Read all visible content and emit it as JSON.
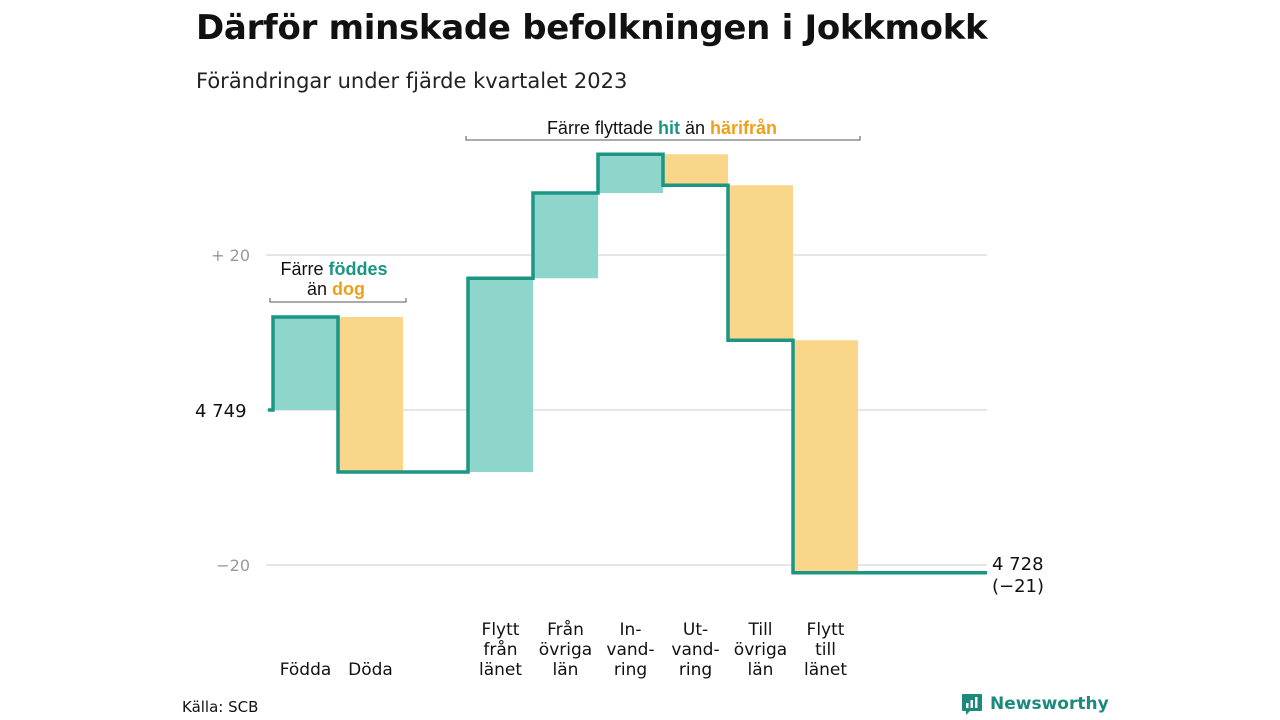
{
  "title": "Därför minskade befolkningen i Jokkmokk",
  "subtitle": "Förändringar under fjärde kvartalet 2023",
  "source": "Källa: SCB",
  "brand": "Newsworthy",
  "colors": {
    "teal": "#1b9584",
    "teal_fill": "#8ed5cb",
    "orange": "#f0a018",
    "orange_fill": "#fad68a",
    "grid": "#dddddd",
    "axis_text": "#999999"
  },
  "annotations": {
    "births": {
      "line1_pre": "Färre ",
      "line1_hl": "föddes",
      "line2_pre": "än ",
      "line2_hl": "dog"
    },
    "migration": {
      "pre": "Färre flyttade ",
      "hl1": "hit",
      "mid": " än ",
      "hl2": "härifrån"
    }
  },
  "chart_data": {
    "type": "waterfall",
    "start_label": "4 749",
    "end_label": "4 728",
    "end_change": "(−21)",
    "start": 0,
    "end": -21,
    "steps": [
      {
        "label": [
          "Födda"
        ],
        "value": 12,
        "kind": "in"
      },
      {
        "label": [
          "Döda"
        ],
        "value": -20,
        "kind": "out"
      },
      {
        "label": [
          "Flytt",
          "från",
          "länet"
        ],
        "value": 25,
        "kind": "in"
      },
      {
        "label": [
          "Från",
          "övriga",
          "län"
        ],
        "value": 11,
        "kind": "in"
      },
      {
        "label": [
          "In-",
          "vand-",
          "ring"
        ],
        "value": 5,
        "kind": "in"
      },
      {
        "label": [
          "Ut-",
          "vand-",
          "ring"
        ],
        "value": -4,
        "kind": "out"
      },
      {
        "label": [
          "Till",
          "övriga",
          "län"
        ],
        "value": -20,
        "kind": "out"
      },
      {
        "label": [
          "Flytt",
          "till",
          "länet"
        ],
        "value": -30,
        "kind": "out"
      }
    ],
    "yticks": [
      {
        "value": 20,
        "label": "+  20"
      },
      {
        "value": 0,
        "label": ""
      },
      {
        "value": -20,
        "label": "−20"
      }
    ],
    "grid": true,
    "ylim": [
      -22,
      33
    ]
  }
}
